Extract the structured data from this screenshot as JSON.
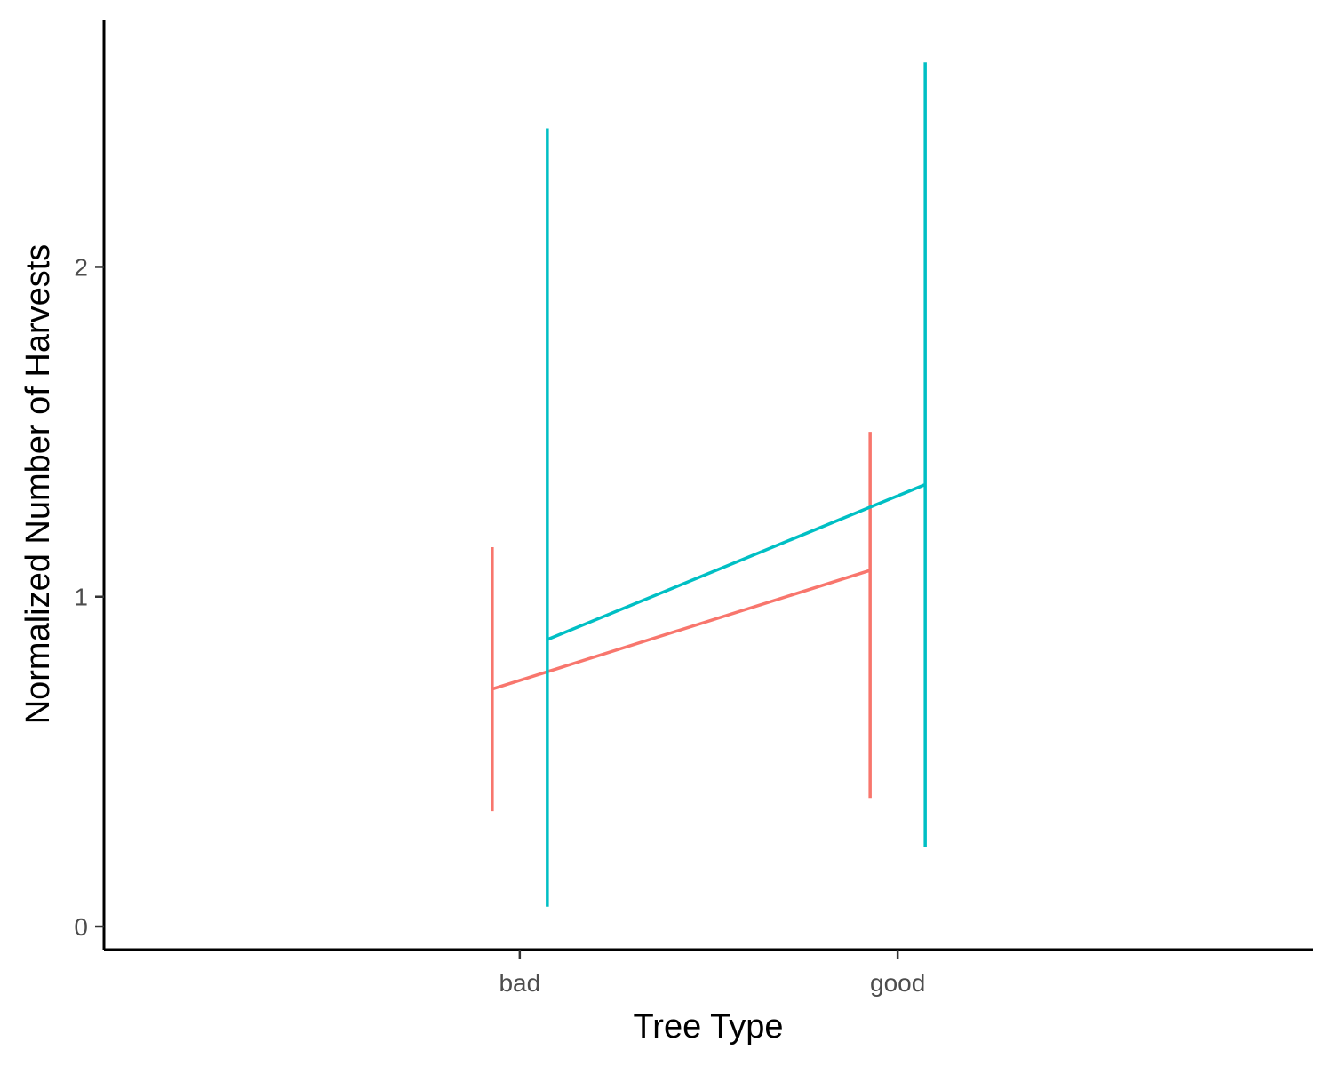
{
  "chart_data": {
    "type": "line",
    "title": "",
    "xlabel": "Tree Type",
    "ylabel": "Normalized Number of Harvests",
    "categories": [
      "bad",
      "good"
    ],
    "y_ticks": [
      "0",
      "1",
      "2"
    ],
    "ylim": [
      -0.07,
      2.75
    ],
    "grid": false,
    "legend": "none",
    "error_bars": true,
    "series": [
      {
        "color": "#F8766D",
        "values": [
          0.72,
          1.08
        ],
        "lower": [
          0.35,
          0.39
        ],
        "upper": [
          1.15,
          1.5
        ]
      },
      {
        "color": "#00BFC4",
        "values": [
          0.87,
          1.34
        ],
        "lower": [
          0.06,
          0.24
        ],
        "upper": [
          2.42,
          2.62
        ]
      }
    ]
  }
}
